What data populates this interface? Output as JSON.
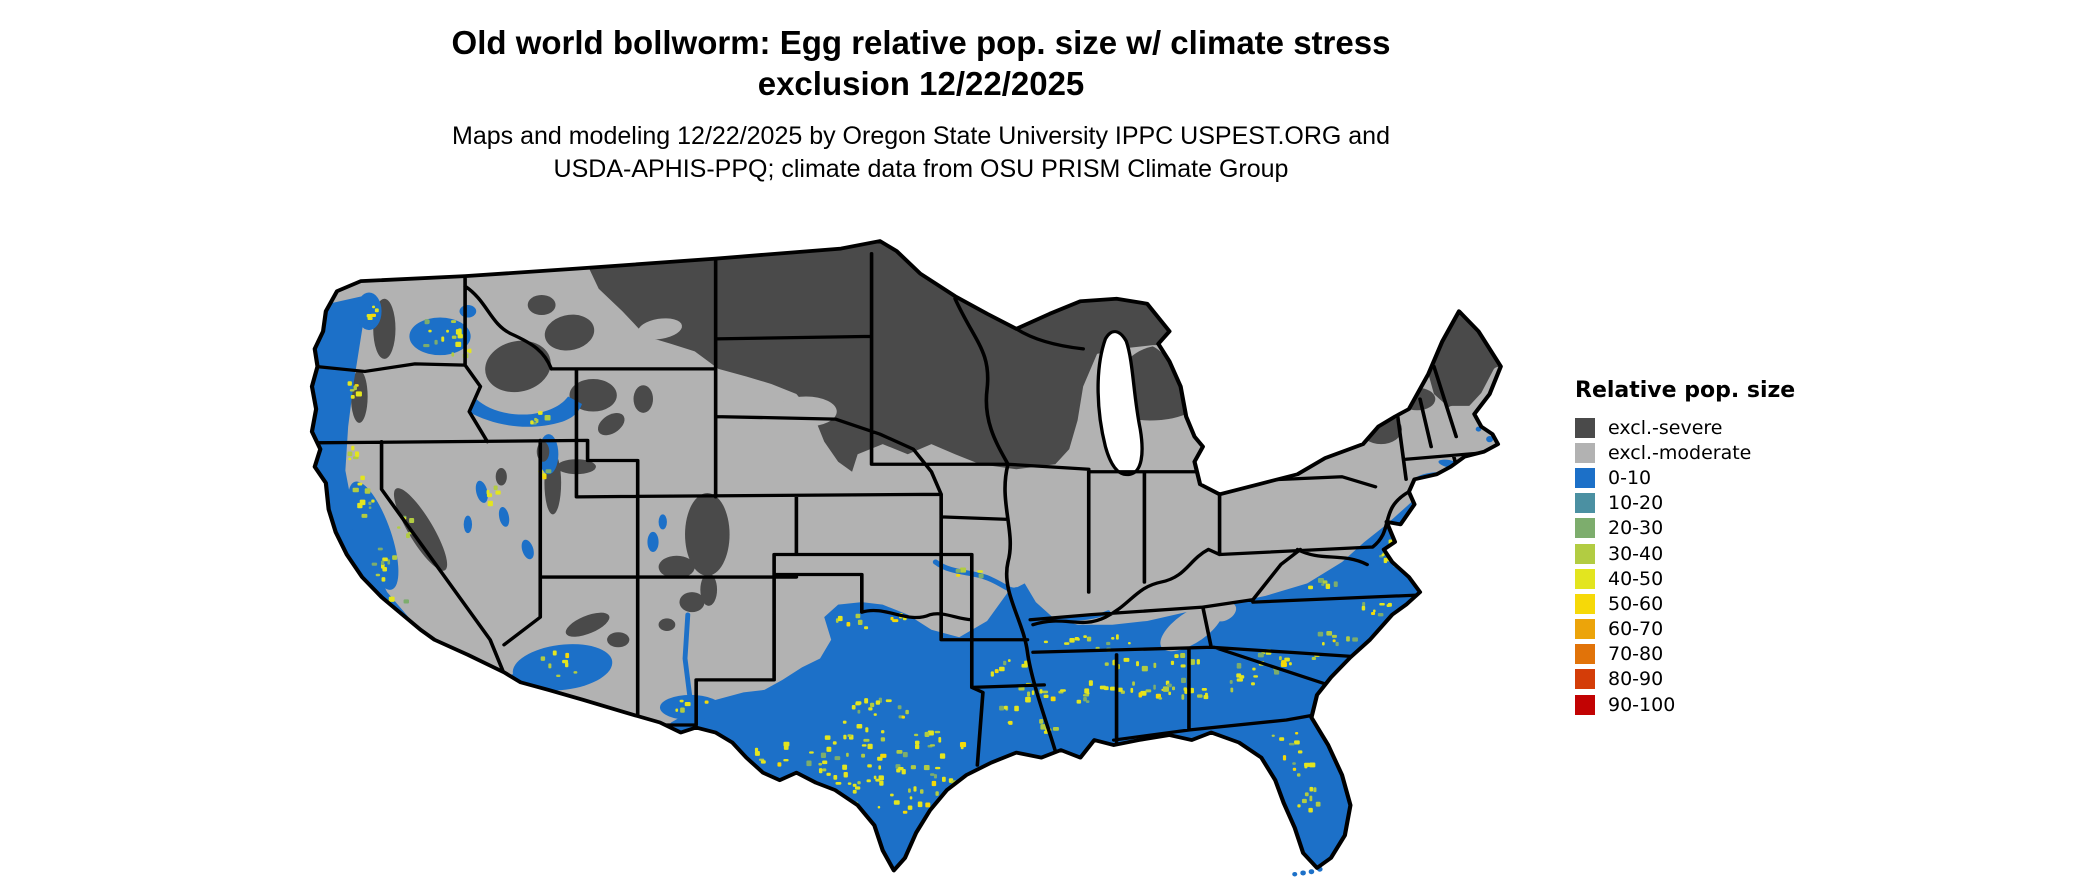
{
  "title": {
    "line1": "Old world bollworm: Egg relative pop. size w/ climate stress",
    "line2": "exclusion 12/22/2025"
  },
  "subtitle": {
    "line1": "Maps and modeling 12/22/2025 by Oregon State University IPPC USPEST.ORG and",
    "line2": "USDA-APHIS-PPQ; climate data from OSU PRISM Climate Group"
  },
  "legend": {
    "title": "Relative pop. size",
    "entries": [
      {
        "label": "excl.-severe",
        "color": "#4a4a4a"
      },
      {
        "label": "excl.-moderate",
        "color": "#b2b2b2"
      },
      {
        "label": "0-10",
        "color": "#1c70c8"
      },
      {
        "label": "10-20",
        "color": "#4b90a2"
      },
      {
        "label": "20-30",
        "color": "#7dad6d"
      },
      {
        "label": "30-40",
        "color": "#b2cc42"
      },
      {
        "label": "40-50",
        "color": "#e3e51f"
      },
      {
        "label": "50-60",
        "color": "#f6d908"
      },
      {
        "label": "60-70",
        "color": "#eca40a"
      },
      {
        "label": "70-80",
        "color": "#e17309"
      },
      {
        "label": "80-90",
        "color": "#d43d08"
      },
      {
        "label": "90-100",
        "color": "#c20303"
      }
    ]
  },
  "map": {
    "description": "Continental United States raster map of Old world bollworm egg relative population size with climate stress exclusion",
    "ocean_color": "#ffffff",
    "state_border_color": "#000000"
  }
}
